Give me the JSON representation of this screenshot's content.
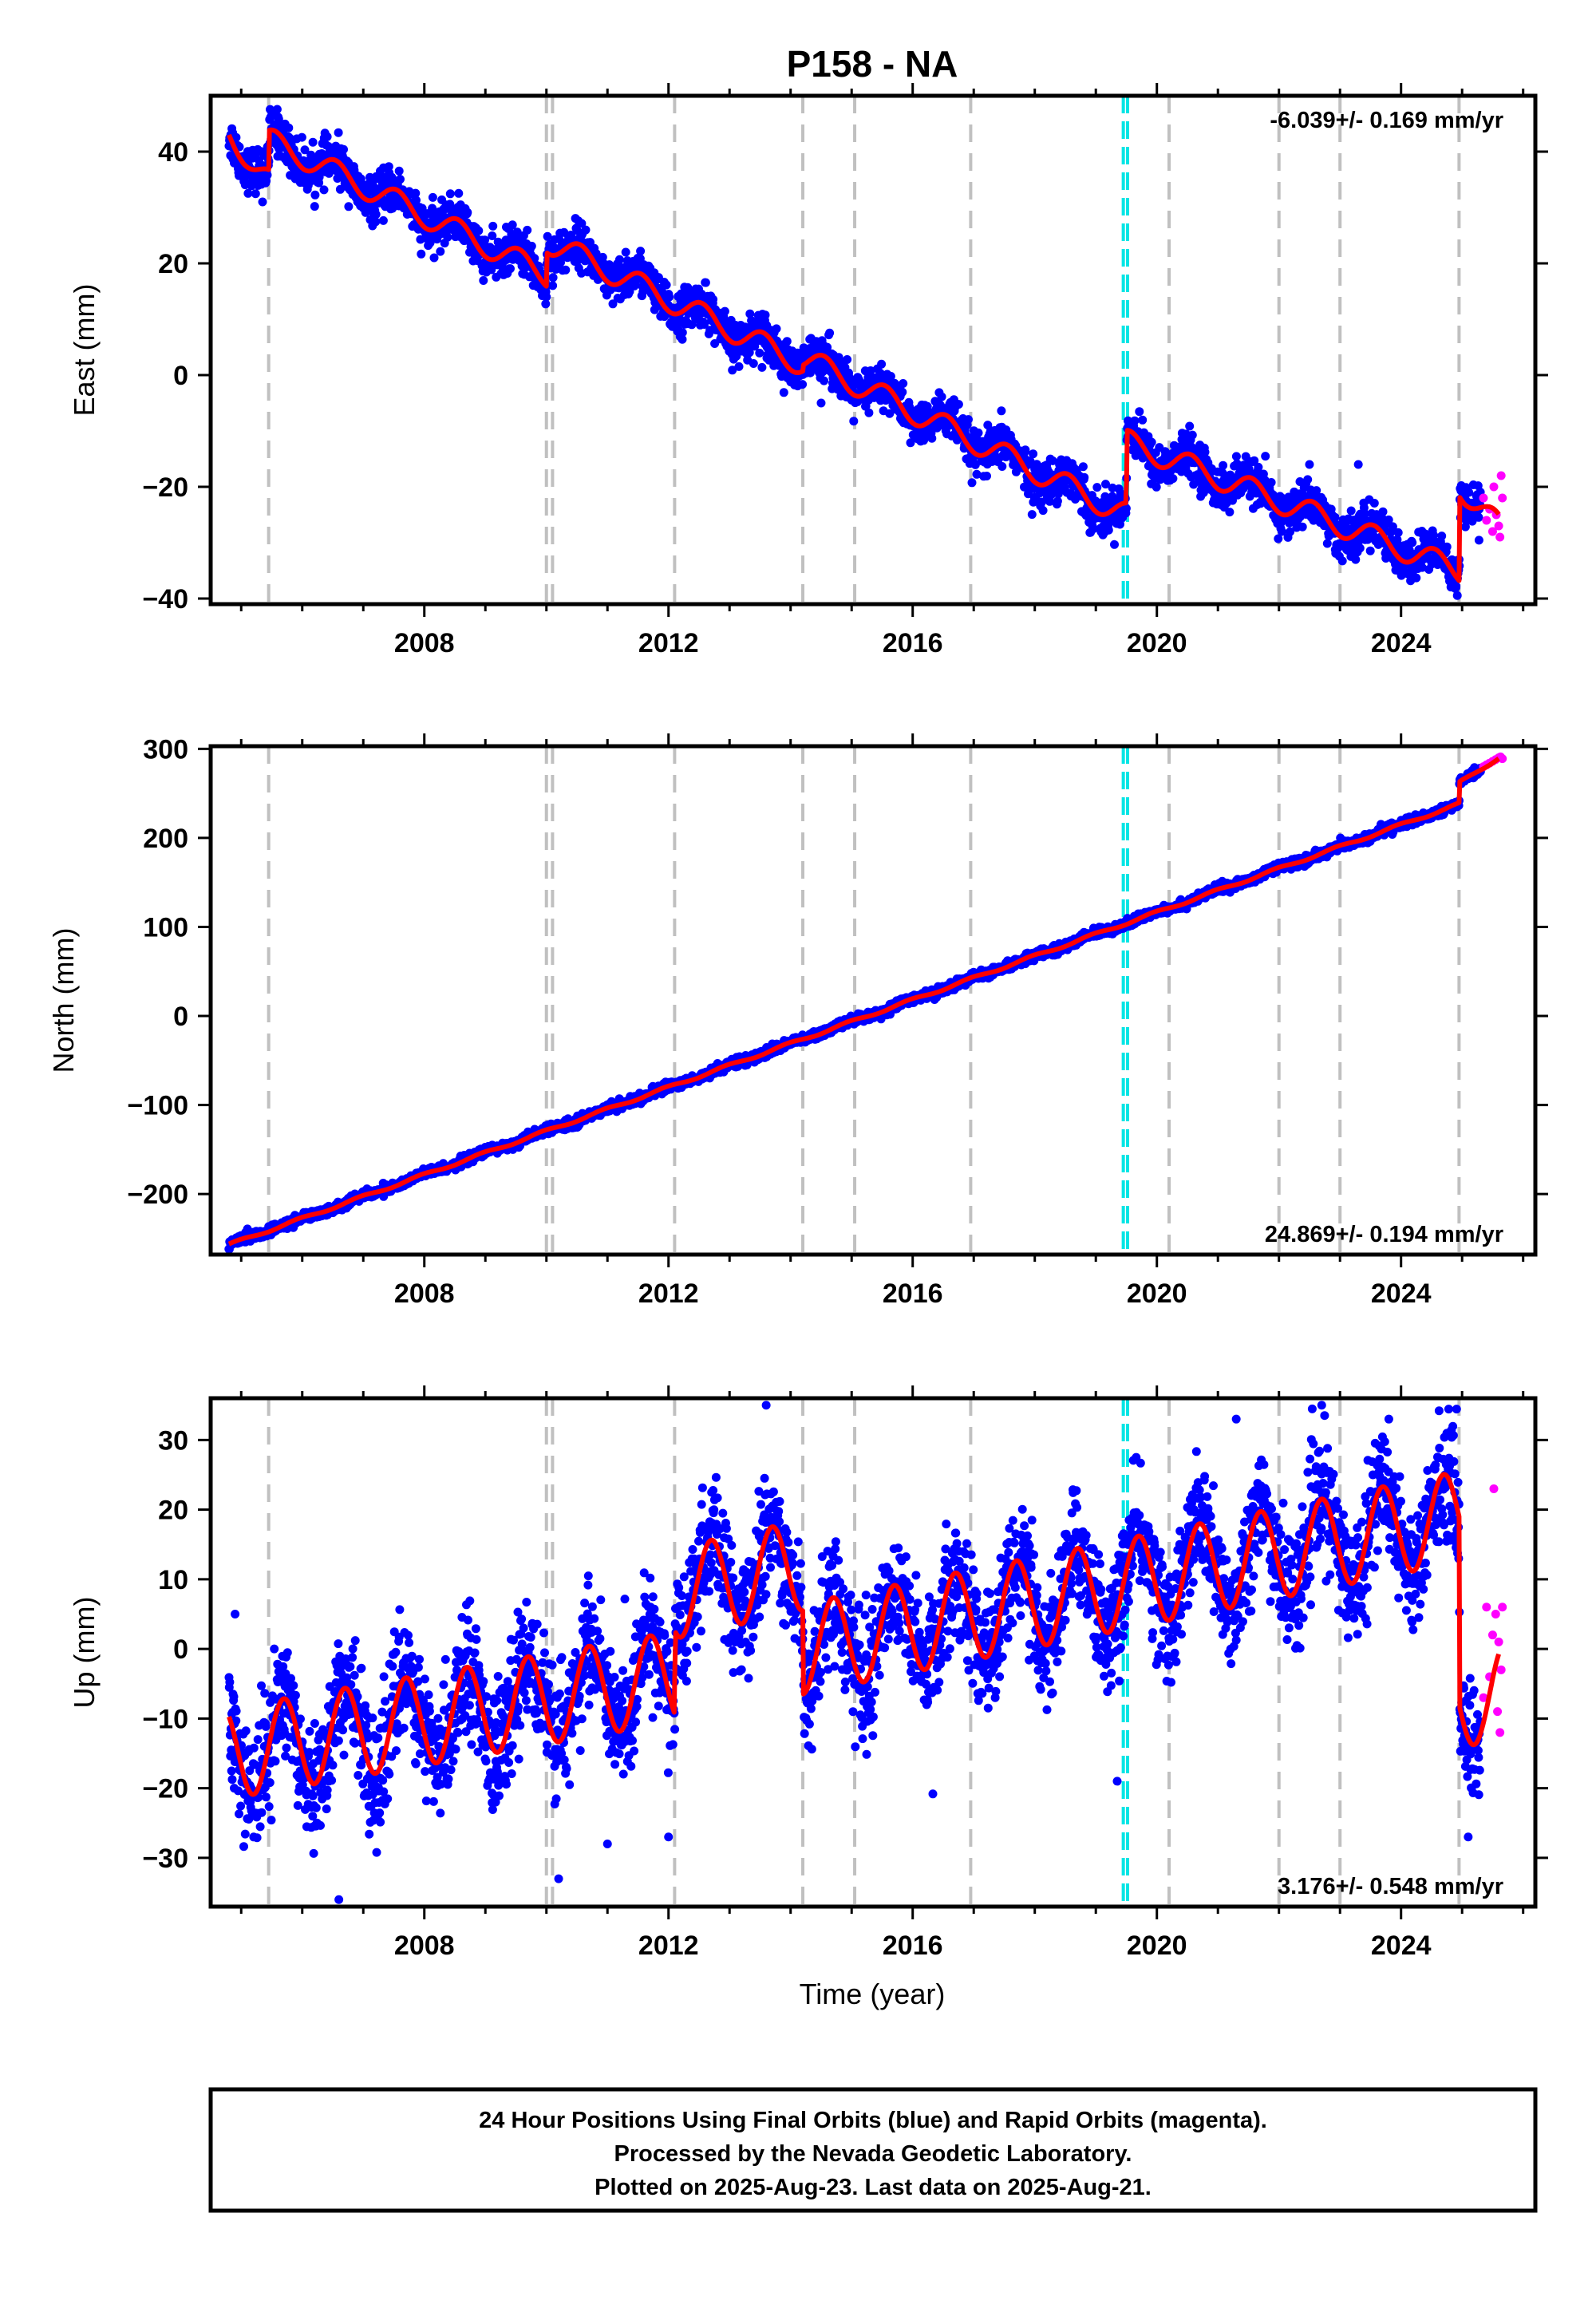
{
  "title": "P158 - NA",
  "x_axis_label": "Time (year)",
  "footer": {
    "line1": "24 Hour Positions Using Final Orbits (blue) and Rapid Orbits (magenta).",
    "line2": "Processed by the Nevada Geodetic Laboratory.",
    "line3": "Plotted on 2025-Aug-23. Last data on 2025-Aug-21."
  },
  "colors": {
    "final_orbits": "#0000ff",
    "rapid_orbits": "#ff00ff",
    "model": "#ff0000",
    "equipment_change": "#c0c0c0",
    "earthquake": "#00e5e5"
  },
  "chart_data": [
    {
      "type": "scatter",
      "ylabel": "East (mm)",
      "rate_label": "-6.039+/- 0.169 mm/yr",
      "rate_position": "top-right",
      "xlim": [
        2004.5,
        2026.2
      ],
      "ylim": [
        -41,
        50
      ],
      "x_ticks": [
        2008,
        2012,
        2016,
        2020,
        2024
      ],
      "y_ticks": [
        -40,
        -20,
        0,
        20,
        40
      ],
      "grid": false,
      "equipment_changes": [
        2005.45,
        2010.0,
        2010.1,
        2012.1,
        2014.2,
        2015.05,
        2016.95,
        2020.2,
        2022.0,
        2023.0,
        2024.95
      ],
      "earthquakes": [
        2019.45,
        2019.52
      ],
      "model": {
        "trend": [
          [
            2004.8,
            43
          ],
          [
            2005.45,
            35
          ],
          [
            2005.46,
            42
          ],
          [
            2010.0,
            18
          ],
          [
            2010.01,
            24
          ],
          [
            2014.2,
            2
          ],
          [
            2014.21,
            3
          ],
          [
            2019.5,
            -25
          ],
          [
            2019.51,
            -12
          ],
          [
            2024.95,
            -35
          ],
          [
            2024.96,
            -20
          ],
          [
            2025.6,
            -27
          ]
        ],
        "seasonal_amplitude": 2.2,
        "seasonal_phase": 0.7
      },
      "final_points": {
        "start": 2004.8,
        "end": 2025.3,
        "scatter": 1.9,
        "outliers": [
          [
            2005.35,
            31
          ],
          [
            2010.0,
            14
          ],
          [
            2011.3,
            22
          ],
          [
            2014.5,
            -5
          ],
          [
            2019.2,
            -27
          ],
          [
            2022.5,
            -16
          ],
          [
            2023.3,
            -16
          ],
          [
            2024.9,
            -38
          ]
        ]
      },
      "rapid_points": [
        [
          2025.35,
          -22
        ],
        [
          2025.4,
          -26
        ],
        [
          2025.45,
          -24
        ],
        [
          2025.5,
          -28
        ],
        [
          2025.52,
          -20
        ],
        [
          2025.56,
          -25
        ],
        [
          2025.6,
          -27
        ],
        [
          2025.62,
          -29
        ],
        [
          2025.64,
          -18
        ],
        [
          2025.66,
          -22
        ]
      ]
    },
    {
      "type": "scatter",
      "ylabel": "North (mm)",
      "rate_label": "24.869+/- 0.194 mm/yr",
      "rate_position": "bottom-right",
      "xlim": [
        2004.5,
        2026.2
      ],
      "ylim": [
        -268,
        303
      ],
      "x_ticks": [
        2008,
        2012,
        2016,
        2020,
        2024
      ],
      "y_ticks": [
        -200,
        -100,
        0,
        100,
        200,
        300
      ],
      "grid": false,
      "equipment_changes": [
        2005.45,
        2010.0,
        2010.1,
        2012.1,
        2014.2,
        2015.05,
        2016.95,
        2020.2,
        2022.0,
        2023.0,
        2024.95
      ],
      "earthquakes": [
        2019.45,
        2019.52
      ],
      "model": {
        "trend": [
          [
            2004.8,
            -257
          ],
          [
            2024.95,
            238
          ],
          [
            2024.96,
            262
          ],
          [
            2025.6,
            290
          ]
        ],
        "seasonal_amplitude": 1.5,
        "seasonal_phase": 0.3
      },
      "final_points": {
        "start": 2004.8,
        "end": 2025.3,
        "scatter": 2.5,
        "outliers": []
      },
      "rapid_points": [
        [
          2025.35,
          280
        ],
        [
          2025.4,
          282
        ],
        [
          2025.45,
          284
        ],
        [
          2025.5,
          286
        ],
        [
          2025.55,
          288
        ],
        [
          2025.6,
          290
        ],
        [
          2025.63,
          291
        ],
        [
          2025.66,
          289
        ]
      ]
    },
    {
      "type": "scatter",
      "ylabel": "Up (mm)",
      "rate_label": "3.176+/- 0.548 mm/yr",
      "rate_position": "bottom-right",
      "xlim": [
        2004.5,
        2026.2
      ],
      "ylim": [
        -37,
        36
      ],
      "x_ticks": [
        2008,
        2012,
        2016,
        2020,
        2024
      ],
      "y_ticks": [
        -30,
        -20,
        -10,
        0,
        10,
        20,
        30
      ],
      "grid": false,
      "equipment_changes": [
        2005.45,
        2010.0,
        2010.1,
        2012.1,
        2014.2,
        2015.05,
        2016.95,
        2020.2,
        2022.0,
        2023.0,
        2024.95
      ],
      "earthquakes": [
        2019.45,
        2019.52
      ],
      "model": {
        "trend": [
          [
            2004.8,
            -15
          ],
          [
            2012.1,
            -4
          ],
          [
            2012.11,
            8
          ],
          [
            2014.2,
            12
          ],
          [
            2014.21,
            0
          ],
          [
            2024.95,
            19
          ],
          [
            2024.96,
            -8
          ],
          [
            2025.6,
            -6
          ]
        ],
        "seasonal_amplitude": 6.5,
        "seasonal_phase": 0.55
      },
      "final_points": {
        "start": 2004.8,
        "end": 2025.3,
        "scatter": 4.2,
        "outliers": [
          [
            2004.9,
            5
          ],
          [
            2006.6,
            -36
          ],
          [
            2010.2,
            -33
          ],
          [
            2011.0,
            -28
          ],
          [
            2012.0,
            -27
          ],
          [
            2013.6,
            35
          ],
          [
            2019.35,
            -19
          ],
          [
            2021.3,
            33
          ],
          [
            2022.7,
            35
          ],
          [
            2023.8,
            33
          ],
          [
            2025.1,
            -27
          ]
        ]
      },
      "rapid_points": [
        [
          2025.35,
          -7
        ],
        [
          2025.4,
          6
        ],
        [
          2025.45,
          -4
        ],
        [
          2025.5,
          2
        ],
        [
          2025.52,
          23
        ],
        [
          2025.55,
          5
        ],
        [
          2025.58,
          -9
        ],
        [
          2025.6,
          1
        ],
        [
          2025.62,
          -12
        ],
        [
          2025.64,
          -3
        ],
        [
          2025.66,
          6
        ]
      ]
    }
  ]
}
